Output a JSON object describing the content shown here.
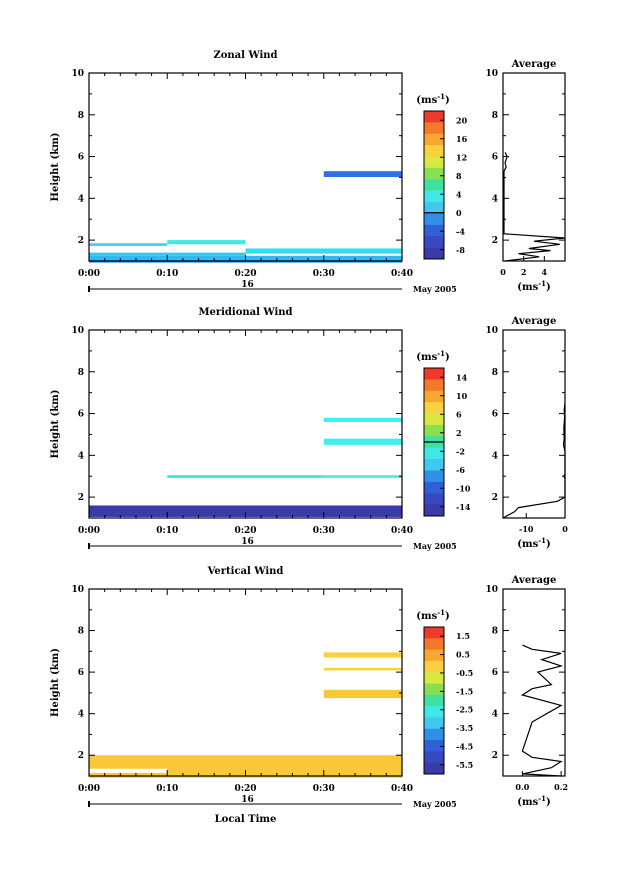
{
  "chart_data": [
    {
      "type": "heatmap",
      "title": "Zonal Wind",
      "ylabel": "Height (km)",
      "ylim": [
        1,
        10
      ],
      "yticks": [
        "2",
        "4",
        "6",
        "8",
        "10"
      ],
      "xticks": [
        "0:00",
        "0:10",
        "0:20",
        "0:30",
        "0:40"
      ],
      "day_label": "16",
      "date_label": "May 2005",
      "colorbar_unit": "(ms⁻¹)",
      "colorbar_ticks": [
        "20",
        "16",
        "12",
        "8",
        "4",
        "0",
        "-4",
        "-8"
      ],
      "colorbar_range": [
        -10,
        22
      ],
      "colorbar_zero_line": 0,
      "bands": [
        {
          "t0": 0,
          "t1": 10,
          "z0": 1.85,
          "z1": 1.72,
          "color": "#40d0f0"
        },
        {
          "t0": 10,
          "t1": 20,
          "z0": 2.0,
          "z1": 1.8,
          "color": "#40e8e8"
        },
        {
          "t0": 20,
          "t1": 40,
          "z0": 1.6,
          "z1": 1.35,
          "color": "#30e0f0"
        },
        {
          "t0": 0,
          "t1": 20,
          "z0": 1.4,
          "z1": 1.25,
          "color": "#30c8f0"
        },
        {
          "t0": 0,
          "t1": 40,
          "z0": 1.25,
          "z1": 1.05,
          "color": "#30b8f0"
        },
        {
          "t0": 0,
          "t1": 40,
          "z0": 1.05,
          "z1": 0.92,
          "color": "#3090e8"
        },
        {
          "t0": 30,
          "t1": 40,
          "z0": 5.3,
          "z1": 5.02,
          "color": "#3070e8"
        }
      ],
      "avg": {
        "title": "Average",
        "xlabel": "(ms⁻¹)",
        "xticks": [
          "0",
          "2",
          "4"
        ],
        "xlim": [
          0,
          6
        ],
        "ylim": [
          1,
          10
        ],
        "yticks": [
          "2",
          "4",
          "6",
          "8",
          "10"
        ],
        "profile": [
          [
            0.2,
            1.0
          ],
          [
            3.5,
            1.2
          ],
          [
            1.5,
            1.35
          ],
          [
            4.6,
            1.5
          ],
          [
            2.5,
            1.6
          ],
          [
            5.5,
            1.8
          ],
          [
            3.0,
            1.95
          ],
          [
            6.0,
            2.1
          ],
          [
            0.1,
            2.3
          ],
          [
            0.1,
            5.3
          ],
          [
            0.3,
            5.5
          ],
          [
            0.2,
            5.7
          ],
          [
            0.4,
            6.0
          ],
          [
            0.2,
            6.2
          ]
        ]
      }
    },
    {
      "type": "heatmap",
      "title": "Meridional Wind",
      "ylabel": "Height (km)",
      "ylim": [
        1,
        10
      ],
      "yticks": [
        "2",
        "4",
        "6",
        "8",
        "10"
      ],
      "xticks": [
        "0:00",
        "0:10",
        "0:20",
        "0:30",
        "0:40"
      ],
      "day_label": "16",
      "date_label": "May 2005",
      "colorbar_unit": "(ms⁻¹)",
      "colorbar_ticks": [
        "14",
        "10",
        "6",
        "2",
        "-2",
        "-6",
        "-10",
        "-14"
      ],
      "colorbar_range": [
        -16,
        16
      ],
      "colorbar_zero_line": 0,
      "bands": [
        {
          "t0": 0,
          "t1": 40,
          "z0": 1.6,
          "z1": 1.05,
          "color": "#3a3aa8"
        },
        {
          "t0": 10,
          "t1": 30,
          "z0": 3.05,
          "z1": 2.92,
          "color": "#30e8e8"
        },
        {
          "t0": 30,
          "t1": 40,
          "z0": 3.05,
          "z1": 2.92,
          "color": "#40f0f0"
        },
        {
          "t0": 30,
          "t1": 40,
          "z0": 4.8,
          "z1": 4.5,
          "color": "#40f0f0"
        },
        {
          "t0": 30,
          "t1": 40,
          "z0": 5.8,
          "z1": 5.6,
          "color": "#40f0f0"
        }
      ],
      "avg": {
        "title": "Average",
        "xlabel": "(ms⁻¹)",
        "xticks": [
          "-10",
          "0"
        ],
        "xlim": [
          -16,
          0
        ],
        "ylim": [
          1,
          10
        ],
        "yticks": [
          "2",
          "4",
          "6",
          "8",
          "10"
        ],
        "profile": [
          [
            -16,
            1.0
          ],
          [
            -13,
            1.3
          ],
          [
            -12,
            1.5
          ],
          [
            -2,
            1.8
          ],
          [
            0,
            2.0
          ],
          [
            0,
            2.9
          ],
          [
            -0.3,
            3.0
          ],
          [
            0,
            3.1
          ],
          [
            0,
            4.2
          ],
          [
            -0.4,
            4.5
          ],
          [
            -0.2,
            4.8
          ],
          [
            -0.3,
            5.3
          ],
          [
            -0.1,
            5.8
          ],
          [
            -0.2,
            6.2
          ],
          [
            0,
            6.5
          ]
        ]
      }
    },
    {
      "type": "heatmap",
      "title": "Vertical Wind",
      "ylabel": "Height (km)",
      "ylim": [
        1,
        10
      ],
      "yticks": [
        "2",
        "4",
        "6",
        "8",
        "10"
      ],
      "xticks": [
        "0:00",
        "0:10",
        "0:20",
        "0:30",
        "0:40"
      ],
      "day_label": "16",
      "date_label": "May 2005",
      "xlabel": "Local Time",
      "colorbar_unit": "(ms⁻¹)",
      "colorbar_ticks": [
        "1.5",
        "0.5",
        "-0.5",
        "-1.5",
        "-2.5",
        "-3.5",
        "-4.5",
        "-5.5"
      ],
      "colorbar_range": [
        -6,
        2
      ],
      "bands": [
        {
          "t0": 0,
          "t1": 40,
          "z0": 2.0,
          "z1": 0.92,
          "color": "#f8c838"
        },
        {
          "t0": 0,
          "t1": 10,
          "z0": 1.35,
          "z1": 1.15,
          "color": "#ffffff"
        },
        {
          "t0": 30,
          "t1": 40,
          "z0": 6.95,
          "z1": 6.7,
          "color": "#f8d040"
        },
        {
          "t0": 30,
          "t1": 40,
          "z0": 6.2,
          "z1": 6.08,
          "color": "#f8d040"
        },
        {
          "t0": 30,
          "t1": 40,
          "z0": 5.15,
          "z1": 4.75,
          "color": "#f8c838"
        }
      ],
      "avg": {
        "title": "Average",
        "xlabel": "(ms⁻¹)",
        "xticks": [
          "0.0",
          "0.2"
        ],
        "xlim": [
          -0.1,
          0.22
        ],
        "ylim": [
          1,
          10
        ],
        "yticks": [
          "2",
          "4",
          "6",
          "8",
          "10"
        ],
        "profile": [
          [
            0.2,
            1.0
          ],
          [
            0.0,
            1.1
          ],
          [
            0.15,
            1.4
          ],
          [
            0.2,
            1.7
          ],
          [
            0.05,
            1.9
          ],
          [
            0.0,
            2.2
          ],
          [
            0.05,
            3.6
          ],
          [
            0.2,
            4.4
          ],
          [
            0.0,
            4.9
          ],
          [
            0.05,
            5.2
          ],
          [
            0.15,
            5.4
          ],
          [
            0.08,
            6.0
          ],
          [
            0.2,
            6.3
          ],
          [
            0.1,
            6.6
          ],
          [
            0.2,
            6.9
          ],
          [
            0.05,
            7.1
          ],
          [
            0.0,
            7.3
          ]
        ]
      }
    }
  ]
}
